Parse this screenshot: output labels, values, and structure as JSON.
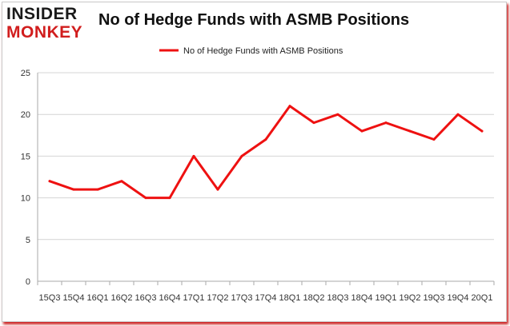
{
  "logo": {
    "top": "INSIDER",
    "bottom": "MONKEY"
  },
  "chart_data": {
    "type": "line",
    "title": "No of Hedge Funds with ASMB Positions",
    "xlabel": "",
    "ylabel": "",
    "legend_position": "top-center",
    "grid": true,
    "ylim": [
      0,
      25
    ],
    "yticks": [
      "0",
      "5",
      "10",
      "15",
      "20",
      "25"
    ],
    "categories": [
      "15Q3",
      "15Q4",
      "16Q1",
      "16Q2",
      "16Q3",
      "16Q4",
      "17Q1",
      "17Q2",
      "17Q3",
      "17Q4",
      "18Q1",
      "18Q2",
      "18Q3",
      "18Q4",
      "19Q1",
      "19Q2",
      "19Q3",
      "19Q4",
      "20Q1"
    ],
    "series": [
      {
        "name": "No of Hedge Funds with ASMB Positions",
        "color": "#ee1111",
        "values": [
          12,
          11,
          11,
          12,
          10,
          10,
          15,
          11,
          15,
          17,
          21,
          19,
          20,
          18,
          19,
          18,
          17,
          20,
          18
        ]
      }
    ]
  }
}
